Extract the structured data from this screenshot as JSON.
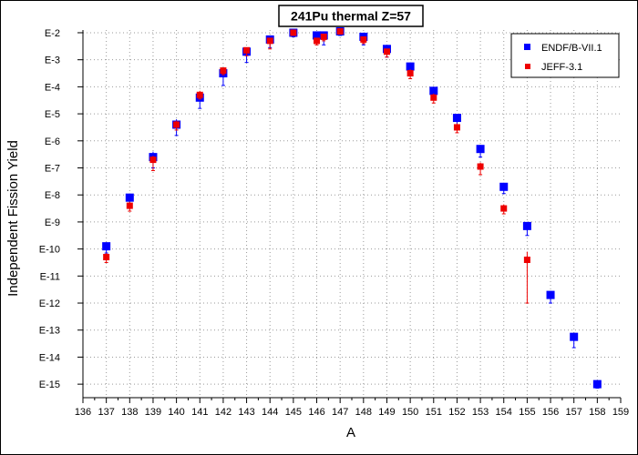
{
  "chart_data": {
    "type": "scatter",
    "title": "241Pu thermal Z=57",
    "xlabel": "A",
    "ylabel": "Independent Fission Yield",
    "xlim": [
      136,
      159
    ],
    "ylim": [
      -15.5,
      -1.9
    ],
    "y_scale": "log",
    "grid": true,
    "legend_position": "top-right",
    "x_ticks": [
      136,
      137,
      138,
      139,
      140,
      141,
      142,
      143,
      144,
      145,
      146,
      147,
      148,
      149,
      150,
      151,
      152,
      153,
      154,
      155,
      156,
      157,
      158,
      159
    ],
    "y_ticks": [
      -2,
      -3,
      -4,
      -5,
      -6,
      -7,
      -8,
      -9,
      -10,
      -11,
      -12,
      -13,
      -14,
      -15
    ],
    "y_tick_labels": [
      "E-2",
      "E-3",
      "E-4",
      "E-5",
      "E-6",
      "E-7",
      "E-8",
      "E-9",
      "E-10",
      "E-11",
      "E-12",
      "E-13",
      "E-14",
      "E-15"
    ],
    "series": [
      {
        "name": "ENDF/B-VII.1",
        "color": "#0000ff",
        "marker": "square",
        "x": [
          137,
          138,
          139,
          140,
          141,
          142,
          143,
          144,
          145,
          146,
          146.3,
          147,
          148,
          149,
          150,
          151,
          152,
          153,
          154,
          155,
          156,
          157,
          158
        ],
        "y": [
          -9.9,
          -8.1,
          -6.6,
          -5.4,
          -4.4,
          -3.5,
          -2.7,
          -2.25,
          -2.0,
          -2.1,
          -2.1,
          -1.95,
          -2.15,
          -2.6,
          -3.25,
          -4.15,
          -5.15,
          -6.3,
          -7.7,
          -9.15,
          -11.7,
          -13.25,
          -15.0
        ],
        "y_err_low": [
          0.25,
          0.3,
          0.4,
          0.4,
          0.4,
          0.45,
          0.4,
          0.3,
          0.15,
          0.2,
          0.35,
          0.15,
          0.3,
          0.3,
          0.3,
          0.3,
          0.3,
          0.3,
          0.25,
          0.35,
          0.3,
          0.4,
          0.15
        ],
        "y_err_high": [
          0.15,
          0.15,
          0.2,
          0.2,
          0.2,
          0.2,
          0.15,
          0.15,
          0.1,
          0.1,
          0.1,
          0.1,
          0.15,
          0.15,
          0.15,
          0.15,
          0.15,
          0.15,
          0.15,
          0.15,
          0.15,
          0.15,
          0.1
        ]
      },
      {
        "name": "JEFF-3.1",
        "color": "#ee0000",
        "marker": "square",
        "x": [
          137,
          138,
          139,
          140,
          141,
          142,
          143,
          144,
          145,
          146,
          146.3,
          147,
          148,
          149,
          150,
          151,
          152,
          153,
          154,
          155
        ],
        "y": [
          -10.3,
          -8.4,
          -6.7,
          -5.4,
          -4.3,
          -3.4,
          -2.65,
          -2.3,
          -2.0,
          -2.3,
          -2.15,
          -1.95,
          -2.25,
          -2.7,
          -3.5,
          -4.4,
          -5.5,
          -6.95,
          -8.5,
          -10.4
        ],
        "y_err_low": [
          0.2,
          0.2,
          0.4,
          0.2,
          0.15,
          0.15,
          0.2,
          0.3,
          0.1,
          0.15,
          0.15,
          0.1,
          0.15,
          0.2,
          0.2,
          0.2,
          0.2,
          0.3,
          0.2,
          1.6
        ],
        "y_err_high": [
          0.15,
          0.15,
          0.15,
          0.15,
          0.15,
          0.1,
          0.1,
          0.1,
          0.1,
          0.1,
          0.1,
          0.1,
          0.1,
          0.1,
          0.15,
          0.15,
          0.15,
          0.15,
          0.15,
          0.3
        ]
      }
    ]
  }
}
